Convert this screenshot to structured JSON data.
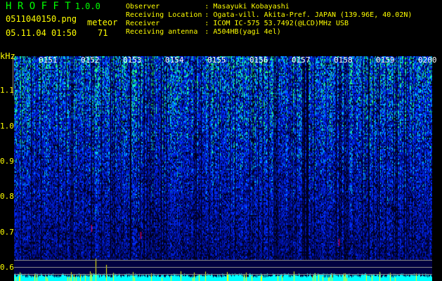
{
  "app": {
    "name": "H R O F F T",
    "version": "1.0.0"
  },
  "file": {
    "name": "0511040150.png",
    "datetime": "05.11.04 01:50",
    "meteor_label": "meteor",
    "meteor_count": "71"
  },
  "info": [
    {
      "label": "Observer",
      "value": ": Masayuki Kobayashi"
    },
    {
      "label": "Receiving Location",
      "value": ": Ogata-vill. Akita-Pref. JAPAN (139.96E, 40.02N)"
    },
    {
      "label": "Receiver",
      "value": ": ICOM IC-575 53.7492(@LCD)MHz USB"
    },
    {
      "label": "Receiving antenna",
      "value": ": A504HB(yagi 4el)"
    }
  ],
  "spectrogram": {
    "y_unit": "kHz",
    "y_ticks": [
      "1.1",
      "1.0",
      "0.9",
      "0.8",
      "0.7",
      "0.6"
    ],
    "time_ticks": [
      "0151",
      "0152",
      "0153",
      "0154",
      "0155",
      "0156",
      "0157",
      "0158",
      "0159",
      "0200"
    ],
    "colors": {
      "background": "#000080",
      "noise": "#0000ff",
      "signal": "#00ff80",
      "meteor": "#ff0060",
      "bottom_bars": "#00ffff",
      "bottom_spikes": "#ffff00"
    }
  }
}
